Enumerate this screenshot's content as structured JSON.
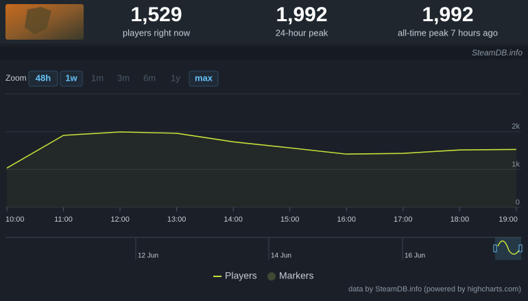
{
  "stats": [
    {
      "value": "1,529",
      "label": "players right now"
    },
    {
      "value": "1,992",
      "label": "24-hour peak"
    },
    {
      "value": "1,992",
      "label": "all-time peak 7 hours ago"
    }
  ],
  "watermark": "SteamDB.info",
  "zoom": {
    "label": "Zoom",
    "buttons": [
      {
        "label": "48h",
        "active": true
      },
      {
        "label": "1w",
        "active": true
      },
      {
        "label": "1m",
        "active": false
      },
      {
        "label": "3m",
        "active": false
      },
      {
        "label": "6m",
        "active": false
      },
      {
        "label": "1y",
        "active": false
      },
      {
        "label": "max",
        "active": true
      }
    ]
  },
  "chart_data": {
    "type": "line",
    "x": [
      10,
      11,
      12,
      13,
      14,
      15,
      16,
      17,
      18,
      19
    ],
    "xlim": [
      10,
      19.05
    ],
    "xticks": [
      {
        "value": 10,
        "label": "10:00"
      },
      {
        "value": 11,
        "label": "11:00"
      },
      {
        "value": 12,
        "label": "12:00"
      },
      {
        "value": 13,
        "label": "13:00"
      },
      {
        "value": 14,
        "label": "14:00"
      },
      {
        "value": 15,
        "label": "15:00"
      },
      {
        "value": 16,
        "label": "16:00"
      },
      {
        "value": 17,
        "label": "17:00"
      },
      {
        "value": 18,
        "label": "18:00"
      },
      {
        "value": 19,
        "label": "19:00"
      }
    ],
    "ylim": [
      0,
      3000
    ],
    "yticks": [
      0,
      {
        "value": 1000,
        "label": "1k"
      },
      {
        "value": 2000,
        "label": "2k"
      }
    ],
    "grid": true,
    "series": [
      {
        "name": "Players",
        "color": "#c6e03a",
        "values": [
          1036,
          1900,
          1990,
          1955,
          1730,
          1570,
          1405,
          1425,
          1515,
          1529
        ]
      },
      {
        "name": "Markers",
        "color": "#3e4a33",
        "values": [
          null,
          null,
          null,
          null,
          null,
          null,
          null,
          null,
          null,
          null
        ]
      }
    ],
    "navigator_labels": [
      "12 Jun",
      "14 Jun",
      "16 Jun"
    ],
    "credits": "data by SteamDB.info (powered by highcharts.com)"
  }
}
